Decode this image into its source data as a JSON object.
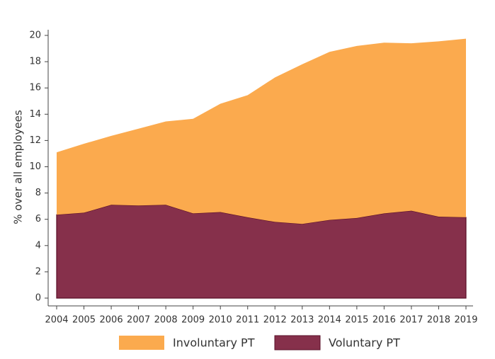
{
  "chart_data": {
    "type": "stacked_area",
    "ylabel": "% over all employees",
    "categories": [
      "2004",
      "2005",
      "2006",
      "2007",
      "2008",
      "2009",
      "2010",
      "2011",
      "2012",
      "2013",
      "2014",
      "2015",
      "2016",
      "2017",
      "2018",
      "2019"
    ],
    "series": [
      {
        "name": "Involuntary PT",
        "color": "#fbaa4e",
        "values": [
          4.75,
          5.25,
          5.25,
          5.85,
          6.35,
          7.2,
          8.25,
          9.3,
          11.0,
          12.15,
          12.8,
          13.1,
          13.0,
          12.75,
          13.35,
          13.6
        ]
      },
      {
        "name": "Voluntary PT",
        "color": "#86304b",
        "values": [
          6.35,
          6.5,
          7.1,
          7.05,
          7.1,
          6.45,
          6.55,
          6.15,
          5.8,
          5.65,
          5.95,
          6.1,
          6.45,
          6.65,
          6.2,
          6.15
        ]
      }
    ],
    "ylim": [
      0,
      20
    ],
    "yticks": [
      0,
      2,
      4,
      6,
      8,
      10,
      12,
      14,
      16,
      18,
      20
    ],
    "legend": "bottom"
  }
}
